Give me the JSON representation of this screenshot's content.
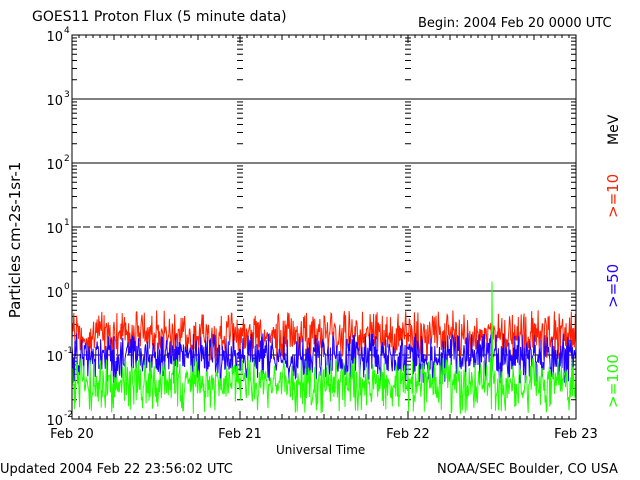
{
  "header": {
    "title": "GOES11 Proton Flux (5 minute data)",
    "begin": "Begin: 2004 Feb 20 0000 UTC"
  },
  "footer": {
    "updated": "Updated 2004 Feb 22 23:56:02 UTC",
    "credit": "NOAA/SEC Boulder, CO USA"
  },
  "chart_data": {
    "type": "line",
    "title": "GOES11 Proton Flux (5 minute data)",
    "xlabel": "Universal Time",
    "ylabel": "Particles cm-2s-1sr-1",
    "yscale": "log",
    "ylim": [
      0.01,
      10000
    ],
    "y_ticks": [
      {
        "value": 0.01,
        "base": "10",
        "exp": "-2"
      },
      {
        "value": 0.1,
        "base": "10",
        "exp": "-1"
      },
      {
        "value": 1,
        "base": "10",
        "exp": "0"
      },
      {
        "value": 10,
        "base": "10",
        "exp": "1"
      },
      {
        "value": 100,
        "base": "10",
        "exp": "2"
      },
      {
        "value": 1000,
        "base": "10",
        "exp": "3"
      },
      {
        "value": 10000,
        "base": "10",
        "exp": "4"
      }
    ],
    "x_ticks": [
      "Feb 20",
      "Feb 21",
      "Feb 22",
      "Feb 23"
    ],
    "xlim_days": [
      0,
      3
    ],
    "gridlines": {
      "solid": [
        1000,
        100,
        1
      ],
      "dashed": [
        10,
        0.1
      ]
    },
    "unit_label": "MeV",
    "series": [
      {
        "name": ">=10",
        "color": "#ff2000",
        "level": 0.2,
        "low": 0.08,
        "high": 0.5
      },
      {
        "name": ">=50",
        "color": "#2000ff",
        "level": 0.09,
        "low": 0.035,
        "high": 0.22
      },
      {
        "name": ">=100",
        "color": "#20ff00",
        "level": 0.035,
        "low": 0.012,
        "high": 0.09,
        "spike": {
          "day": 2.5,
          "value": 1.4
        }
      }
    ]
  }
}
